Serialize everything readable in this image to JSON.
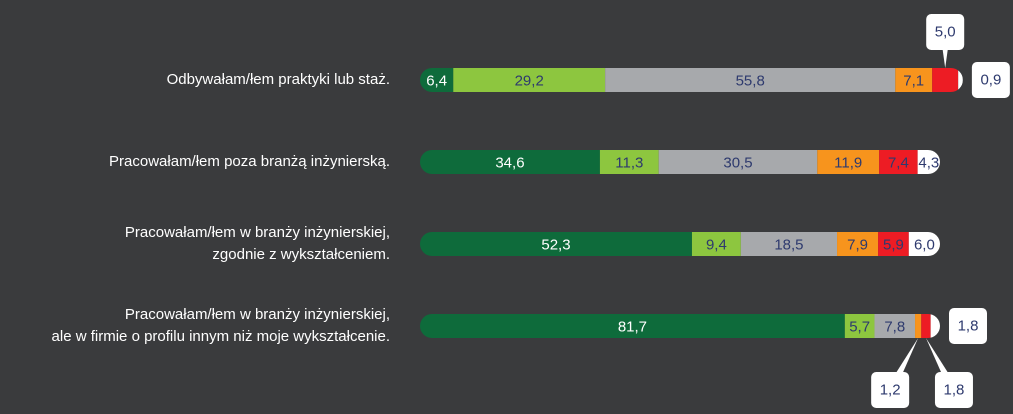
{
  "chart_data": {
    "type": "stacked-bar-horizontal",
    "categories": [
      "Odbywałam/łem praktyki lub staż.",
      "Pracowałam/łem poza branżą inżynierską.",
      "Pracowałam/łem w branży inżynierskiej,\nzgodnie z wykształceniem.",
      "Pracowałam/łem w branży inżynierskiej,\nale w firmie o profilu innym niż moje wykształcenie."
    ],
    "xlim": [
      0,
      100
    ],
    "series": [
      {
        "color": "#0e6b3b",
        "values": [
          6.4,
          34.6,
          52.3,
          81.7
        ],
        "value_labels": [
          "6,4",
          "34,6",
          "52,3",
          "81,7"
        ]
      },
      {
        "color": "#8dc63f",
        "values": [
          29.2,
          11.3,
          9.4,
          5.7
        ],
        "value_labels": [
          "29,2",
          "11,3",
          "9,4",
          "5,7"
        ]
      },
      {
        "color": "#a7a9ac",
        "values": [
          55.8,
          30.5,
          18.5,
          7.8
        ],
        "value_labels": [
          "55,8",
          "30,5",
          "18,5",
          "7,8"
        ]
      },
      {
        "color": "#f7941d",
        "values": [
          7.1,
          11.9,
          7.9,
          1.2
        ],
        "value_labels": [
          "7,1",
          "11,9",
          "7,9",
          "1,2"
        ]
      },
      {
        "color": "#ed1c24",
        "values": [
          5.0,
          7.4,
          5.9,
          1.8
        ],
        "value_labels": [
          "5,0",
          "7,4",
          "5,9",
          "1,8"
        ]
      },
      {
        "color": "#ffffff",
        "values": [
          0.9,
          4.3,
          6.0,
          1.8
        ],
        "value_labels": [
          "0,9",
          "4,3",
          "6,0",
          "1,8"
        ]
      }
    ]
  }
}
